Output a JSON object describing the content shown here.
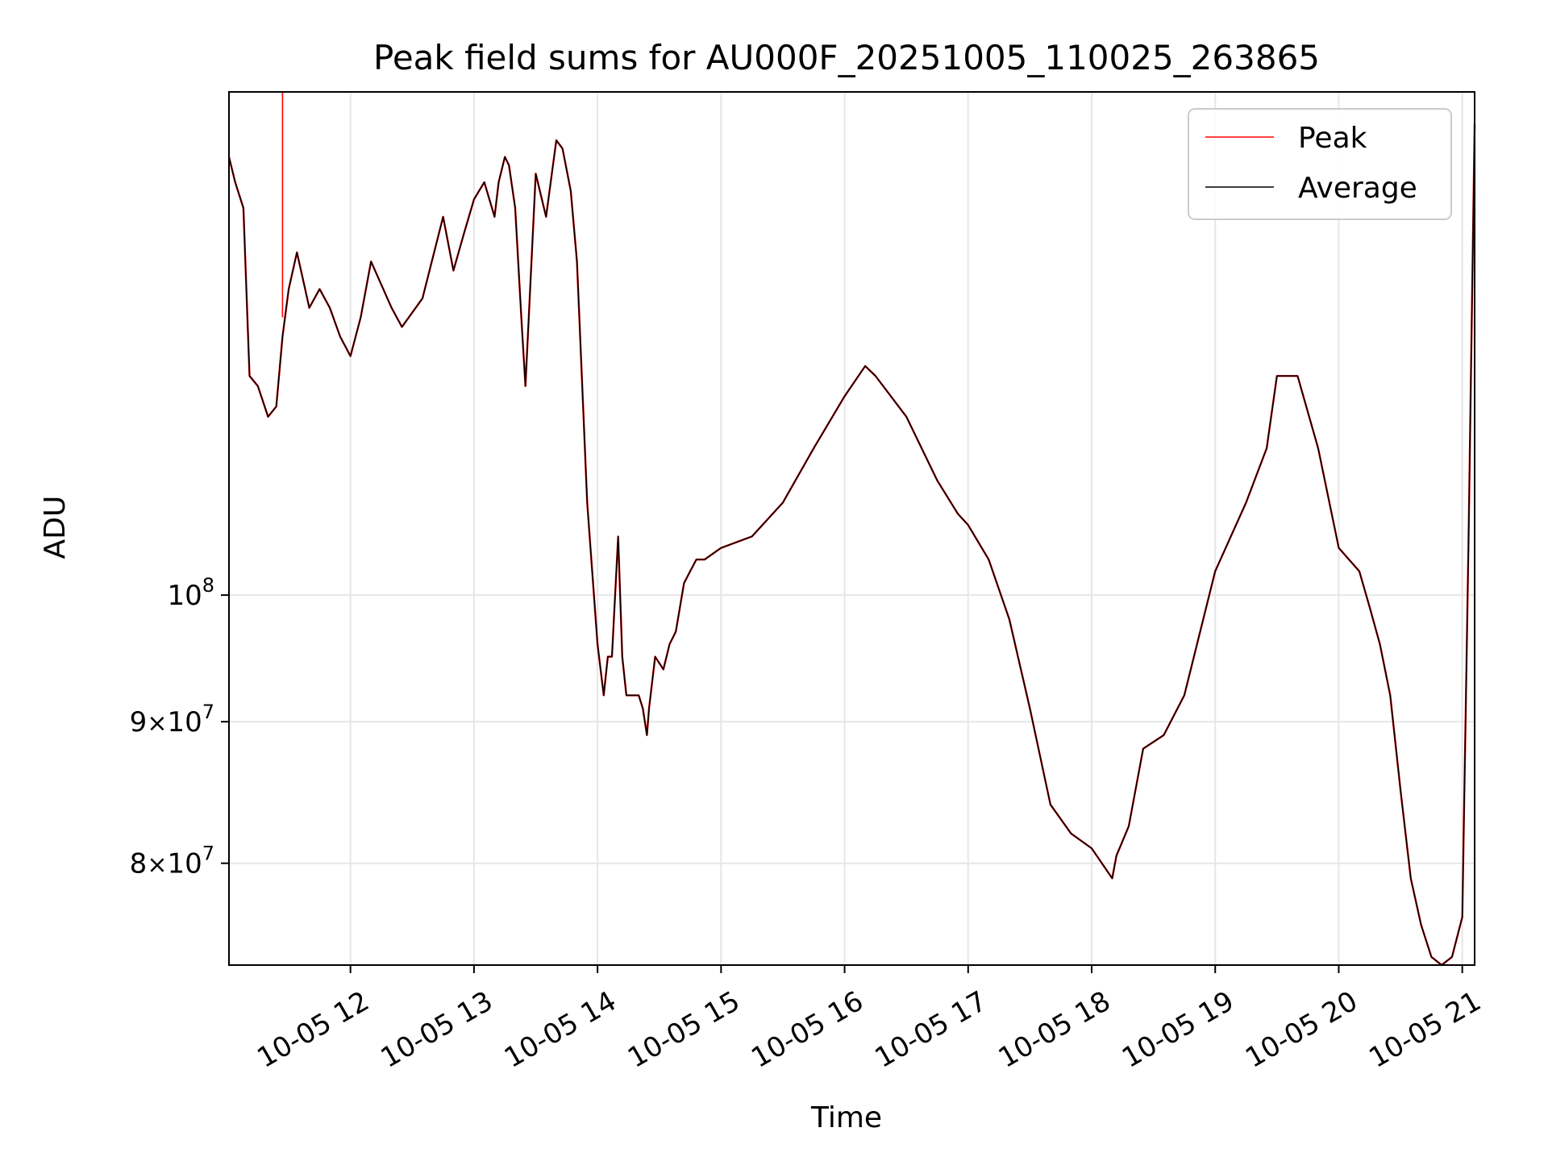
{
  "chart_data": {
    "type": "line",
    "title": "Peak field sums for AU000F_20251005_110025_263865",
    "xlabel": "Time",
    "ylabel": "ADU",
    "y_scale": "log",
    "grid": true,
    "legend_position": "top-right",
    "x_range": [
      "2025-10-05 11:01",
      "2025-10-05 21:06"
    ],
    "y_range": [
      73500000,
      152000000
    ],
    "x_ticks": [
      {
        "t": "2025-10-05 12:00",
        "label": "10-05 12"
      },
      {
        "t": "2025-10-05 13:00",
        "label": "10-05 13"
      },
      {
        "t": "2025-10-05 14:00",
        "label": "10-05 14"
      },
      {
        "t": "2025-10-05 15:00",
        "label": "10-05 15"
      },
      {
        "t": "2025-10-05 16:00",
        "label": "10-05 16"
      },
      {
        "t": "2025-10-05 17:00",
        "label": "10-05 17"
      },
      {
        "t": "2025-10-05 18:00",
        "label": "10-05 18"
      },
      {
        "t": "2025-10-05 19:00",
        "label": "10-05 19"
      },
      {
        "t": "2025-10-05 20:00",
        "label": "10-05 20"
      },
      {
        "t": "2025-10-05 21:00",
        "label": "10-05 21"
      }
    ],
    "y_ticks": [
      {
        "value": 80000000,
        "mantissa": "8",
        "base": "10",
        "exp": "7"
      },
      {
        "value": 90000000,
        "mantissa": "9",
        "base": "10",
        "exp": "7"
      },
      {
        "value": 100000000,
        "mantissa": "",
        "base": "10",
        "exp": "8"
      }
    ],
    "times": [
      "2025-10-05 11:01",
      "2025-10-05 11:04",
      "2025-10-05 11:08",
      "2025-10-05 11:11",
      "2025-10-05 11:15",
      "2025-10-05 11:20",
      "2025-10-05 11:24",
      "2025-10-05 11:27",
      "2025-10-05 11:30",
      "2025-10-05 11:34",
      "2025-10-05 11:37",
      "2025-10-05 11:40",
      "2025-10-05 11:45",
      "2025-10-05 11:50",
      "2025-10-05 11:55",
      "2025-10-05 12:00",
      "2025-10-05 12:05",
      "2025-10-05 12:10",
      "2025-10-05 12:20",
      "2025-10-05 12:25",
      "2025-10-05 12:35",
      "2025-10-05 12:45",
      "2025-10-05 12:50",
      "2025-10-05 12:55",
      "2025-10-05 13:00",
      "2025-10-05 13:05",
      "2025-10-05 13:10",
      "2025-10-05 13:12",
      "2025-10-05 13:15",
      "2025-10-05 13:17",
      "2025-10-05 13:20",
      "2025-10-05 13:23",
      "2025-10-05 13:25",
      "2025-10-05 13:30",
      "2025-10-05 13:35",
      "2025-10-05 13:40",
      "2025-10-05 13:43",
      "2025-10-05 13:47",
      "2025-10-05 13:50",
      "2025-10-05 13:55",
      "2025-10-05 14:00",
      "2025-10-05 14:03",
      "2025-10-05 14:05",
      "2025-10-05 14:07",
      "2025-10-05 14:10",
      "2025-10-05 14:12",
      "2025-10-05 14:14",
      "2025-10-05 14:17",
      "2025-10-05 14:20",
      "2025-10-05 14:22",
      "2025-10-05 14:24",
      "2025-10-05 14:25",
      "2025-10-05 14:28",
      "2025-10-05 14:32",
      "2025-10-05 14:35",
      "2025-10-05 14:38",
      "2025-10-05 14:42",
      "2025-10-05 14:45",
      "2025-10-05 14:48",
      "2025-10-05 14:52",
      "2025-10-05 15:00",
      "2025-10-05 15:15",
      "2025-10-05 15:30",
      "2025-10-05 15:45",
      "2025-10-05 16:00",
      "2025-10-05 16:10",
      "2025-10-05 16:15",
      "2025-10-05 16:30",
      "2025-10-05 16:45",
      "2025-10-05 16:55",
      "2025-10-05 17:00",
      "2025-10-05 17:10",
      "2025-10-05 17:20",
      "2025-10-05 17:30",
      "2025-10-05 17:40",
      "2025-10-05 17:50",
      "2025-10-05 18:00",
      "2025-10-05 18:10",
      "2025-10-05 18:12",
      "2025-10-05 18:18",
      "2025-10-05 18:25",
      "2025-10-05 18:35",
      "2025-10-05 18:45",
      "2025-10-05 19:00",
      "2025-10-05 19:15",
      "2025-10-05 19:25",
      "2025-10-05 19:30",
      "2025-10-05 19:40",
      "2025-10-05 19:50",
      "2025-10-05 20:00",
      "2025-10-05 20:10",
      "2025-10-05 20:15",
      "2025-10-05 20:20",
      "2025-10-05 20:25",
      "2025-10-05 20:30",
      "2025-10-05 20:35",
      "2025-10-05 20:40",
      "2025-10-05 20:45",
      "2025-10-05 20:50",
      "2025-10-05 20:55",
      "2025-10-05 21:00",
      "2025-10-05 21:03",
      "2025-10-05 21:06"
    ],
    "series": [
      {
        "name": "Peak",
        "color": "#ff0000",
        "spikes": [
          {
            "t": "2025-10-05 11:27",
            "from": 126000000,
            "to": 152000000
          }
        ],
        "values": [
          144000000,
          141000000,
          138000000,
          120000000,
          119000000,
          116000000,
          117000000,
          124000000,
          129000000,
          133000000,
          130000000,
          127000000,
          129000000,
          127000000,
          124000000,
          122000000,
          126000000,
          132000000,
          127000000,
          125000000,
          128000000,
          137000000,
          131000000,
          135000000,
          139000000,
          141000000,
          137000000,
          141000000,
          144000000,
          143000000,
          138000000,
          126000000,
          119000000,
          142000000,
          137000000,
          146000000,
          145000000,
          140000000,
          132000000,
          108000000,
          96000000,
          92000000,
          95000000,
          95000000,
          105000000,
          95000000,
          92000000,
          92000000,
          92000000,
          91000000,
          89000000,
          91000000,
          95000000,
          94000000,
          96000000,
          97000000,
          101000000,
          102000000,
          103000000,
          103000000,
          104000000,
          105000000,
          108000000,
          113000000,
          118000000,
          121000000,
          120000000,
          116000000,
          110000000,
          107000000,
          106000000,
          103000000,
          98000000,
          91000000,
          84000000,
          82000000,
          81000000,
          79000000,
          80500000,
          82500000,
          88000000,
          89000000,
          92000000,
          102000000,
          108000000,
          113000000,
          120000000,
          120000000,
          113000000,
          104000000,
          102000000,
          99000000,
          96000000,
          92000000,
          85000000,
          79000000,
          76000000,
          74000000,
          73500000,
          74000000,
          76500000,
          104000000,
          148000000
        ]
      },
      {
        "name": "Average",
        "color": "#000000",
        "values": [
          144000000,
          141000000,
          138000000,
          120000000,
          119000000,
          116000000,
          117000000,
          124000000,
          129000000,
          133000000,
          130000000,
          127000000,
          129000000,
          127000000,
          124000000,
          122000000,
          126000000,
          132000000,
          127000000,
          125000000,
          128000000,
          137000000,
          131000000,
          135000000,
          139000000,
          141000000,
          137000000,
          141000000,
          144000000,
          143000000,
          138000000,
          126000000,
          119000000,
          142000000,
          137000000,
          146000000,
          145000000,
          140000000,
          132000000,
          108000000,
          96000000,
          92000000,
          95000000,
          95000000,
          105000000,
          95000000,
          92000000,
          92000000,
          92000000,
          91000000,
          89000000,
          91000000,
          95000000,
          94000000,
          96000000,
          97000000,
          101000000,
          102000000,
          103000000,
          103000000,
          104000000,
          105000000,
          108000000,
          113000000,
          118000000,
          121000000,
          120000000,
          116000000,
          110000000,
          107000000,
          106000000,
          103000000,
          98000000,
          91000000,
          84000000,
          82000000,
          81000000,
          79000000,
          80500000,
          82500000,
          88000000,
          89000000,
          92000000,
          102000000,
          108000000,
          113000000,
          120000000,
          120000000,
          113000000,
          104000000,
          102000000,
          99000000,
          96000000,
          92000000,
          85000000,
          79000000,
          76000000,
          74000000,
          73500000,
          74000000,
          76500000,
          104000000,
          148000000
        ]
      }
    ]
  }
}
